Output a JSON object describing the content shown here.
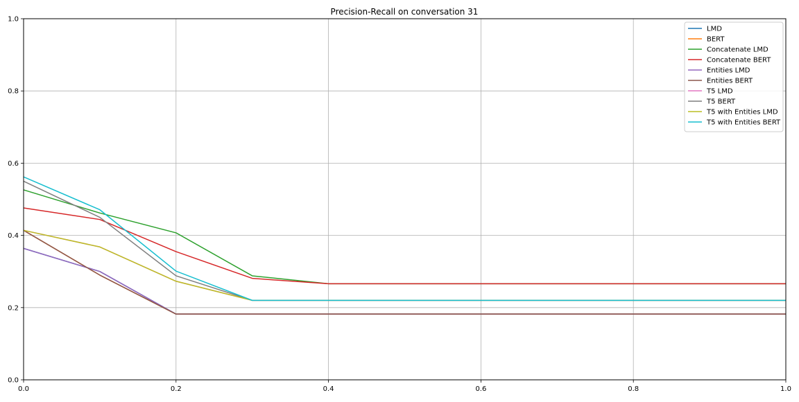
{
  "chart_data": {
    "type": "line",
    "title": "Precision-Recall on conversation 31",
    "xlabel": "",
    "ylabel": "",
    "xlim": [
      0,
      1
    ],
    "ylim": [
      0,
      1
    ],
    "x_ticks": [
      "0.0",
      "0.2",
      "0.4",
      "0.6",
      "0.8",
      "1.0"
    ],
    "y_ticks": [
      "0.0",
      "0.2",
      "0.4",
      "0.6",
      "0.8",
      "1.0"
    ],
    "grid": true,
    "legend_position": "top-right",
    "x": [
      0.0,
      0.1,
      0.2,
      0.3,
      0.4,
      0.5,
      0.6,
      0.7,
      0.8,
      0.9,
      1.0
    ],
    "series": [
      {
        "name": "LMD",
        "color": "#1f77b4",
        "values": [
          0.364,
          0.3,
          0.182,
          0.182,
          0.182,
          0.182,
          0.182,
          0.182,
          0.182,
          0.182,
          0.182
        ]
      },
      {
        "name": "BERT",
        "color": "#ff7f0e",
        "values": [
          0.414,
          0.29,
          0.182,
          0.182,
          0.182,
          0.182,
          0.182,
          0.182,
          0.182,
          0.182,
          0.182
        ]
      },
      {
        "name": "Concatenate LMD",
        "color": "#2ca02c",
        "values": [
          0.526,
          0.462,
          0.407,
          0.288,
          0.266,
          0.266,
          0.266,
          0.266,
          0.266,
          0.266,
          0.266
        ]
      },
      {
        "name": "Concatenate BERT",
        "color": "#d62728",
        "values": [
          0.476,
          0.444,
          0.355,
          0.281,
          0.266,
          0.266,
          0.266,
          0.266,
          0.266,
          0.266,
          0.266
        ]
      },
      {
        "name": "Entities LMD",
        "color": "#9467bd",
        "values": [
          0.364,
          0.3,
          0.182,
          0.182,
          0.182,
          0.182,
          0.182,
          0.182,
          0.182,
          0.182,
          0.182
        ]
      },
      {
        "name": "Entities BERT",
        "color": "#8c564b",
        "values": [
          0.414,
          0.29,
          0.182,
          0.182,
          0.182,
          0.182,
          0.182,
          0.182,
          0.182,
          0.182,
          0.182
        ]
      },
      {
        "name": "T5 LMD",
        "color": "#e377c2",
        "values": [
          0.414,
          0.368,
          0.273,
          0.22,
          0.22,
          0.22,
          0.22,
          0.22,
          0.22,
          0.22,
          0.22
        ]
      },
      {
        "name": "T5 BERT",
        "color": "#7f7f7f",
        "values": [
          0.55,
          0.45,
          0.288,
          0.22,
          0.22,
          0.22,
          0.22,
          0.22,
          0.22,
          0.22,
          0.22
        ]
      },
      {
        "name": "T5 with Entities LMD",
        "color": "#bcbd22",
        "values": [
          0.414,
          0.368,
          0.273,
          0.22,
          0.22,
          0.22,
          0.22,
          0.22,
          0.22,
          0.22,
          0.22
        ]
      },
      {
        "name": "T5 with Entities BERT",
        "color": "#17becf",
        "values": [
          0.562,
          0.471,
          0.301,
          0.22,
          0.22,
          0.22,
          0.22,
          0.22,
          0.22,
          0.22,
          0.22
        ]
      }
    ]
  }
}
